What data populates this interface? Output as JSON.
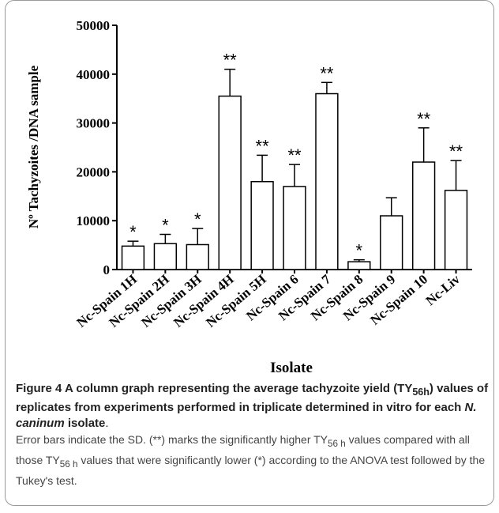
{
  "chart_data": {
    "type": "bar",
    "xlabel": "Isolate",
    "ylabel": "Nº Tachyzoites /DNA sample",
    "categories": [
      "Nc-Spain 1H",
      "Nc-Spain 2H",
      "Nc-Spain 3H",
      "Nc-Spain 4H",
      "Nc-Spain 5H",
      "Nc-Spain 6",
      "Nc-Spain 7",
      "Nc-Spain 8",
      "Nc-Spain 9",
      "Nc-Spain 10",
      "Nc-Liv"
    ],
    "values": [
      4800,
      5300,
      5100,
      35500,
      18000,
      17000,
      36000,
      1600,
      11000,
      22000,
      16200
    ],
    "errors": [
      1000,
      1900,
      3300,
      5500,
      5400,
      4500,
      2300,
      400,
      3700,
      7000,
      6100
    ],
    "annotations": [
      "*",
      "*",
      "*",
      "**",
      "**",
      "**",
      "**",
      "*",
      null,
      "**",
      "**"
    ],
    "color": "#ffffff",
    "ylim": [
      0,
      50000
    ],
    "yticks": [
      0,
      10000,
      20000,
      30000,
      40000,
      50000
    ]
  },
  "caption": {
    "title": [
      "Figure 4",
      " A column graph representing the average tachyzoite yield (TY",
      "56h",
      ") values of replicates from experiments performed in triplicate determined in vitro for each ",
      "N. caninum",
      " isolate",
      "."
    ],
    "body": [
      "Error bars indicate the SD. (**) marks the significantly higher TY",
      "56 h",
      " values compared with all those TY",
      "56 h",
      " values that were significantly lower (*) according to the ANOVA test followed by the Tukey's test."
    ]
  }
}
